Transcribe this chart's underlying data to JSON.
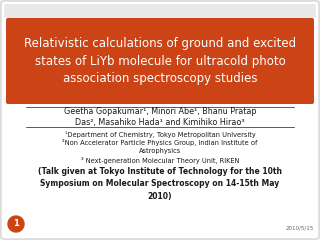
{
  "bg_color": "#f2f2f2",
  "slide_bg": "#ffffff",
  "title_bg_color": "#cc4415",
  "title_text": "Relativistic calculations of ground and excited\nstates of LiYb molecule for ultracold photo\nassociation spectroscopy studies",
  "title_color": "#ffffff",
  "title_fontsize": 8.5,
  "authors_line1": "Geetha Gopakumar¹, Minori Abe¹, Bhanu Pratap",
  "authors_line2": "Das², Masahiko Hada¹ and Kimihiko Hirao³",
  "affil1": "¹Department of Chemistry, Tokyo Metropolitan University",
  "affil2": "²Non Accelerator Particle Physics Group, Indian Institute of\nAstrophysics",
  "affil3": "³ Next-generation Molecular Theory Unit, RIKEN",
  "talk_line": "(Talk given at Tokyo Institute of Technology for the 10th\nSymposium on Molecular Spectroscopy on 14-15th May\n2010)",
  "talk_sup1": "th",
  "date_text": "2010/5/15",
  "page_num": "1",
  "text_color": "#1a1a1a",
  "small_fontsize": 4.8,
  "medium_fontsize": 5.8,
  "bold_fontsize": 5.5,
  "page_fontsize": 6.0
}
